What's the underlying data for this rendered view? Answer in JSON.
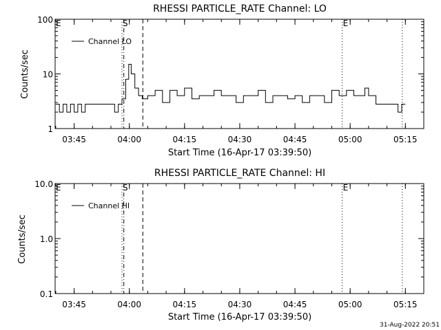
{
  "footer": {
    "date": "31-Aug-2022 20:51"
  },
  "chart_data": [
    {
      "type": "line",
      "title": "RHESSI PARTICLE_RATE Channel: LO",
      "xlabel": "Start Time (16-Apr-17 03:39:50)",
      "ylabel": "Counts/sec",
      "yscale": "log",
      "ylim": [
        1,
        100
      ],
      "xlim": [
        "03:39:50",
        "05:20:00"
      ],
      "x_ticks": [
        "03:45",
        "04:00",
        "04:15",
        "04:30",
        "04:45",
        "05:00",
        "05:15"
      ],
      "y_ticks": [
        "1",
        "10",
        "100"
      ],
      "legend": "Channel LO",
      "legend_position": "top-left",
      "markers": [
        {
          "label": "E",
          "time": "03:39:50",
          "style": "dotted"
        },
        {
          "label": "S",
          "time": "03:58:00",
          "style": "dotted"
        },
        {
          "label": "",
          "time": "03:58:30",
          "style": "dashdot"
        },
        {
          "label": "",
          "time": "04:03:40",
          "style": "dashed"
        },
        {
          "label": "E",
          "time": "04:57:50",
          "style": "dotted"
        },
        {
          "label": "",
          "time": "05:14:10",
          "style": "dotted"
        }
      ],
      "series": [
        {
          "name": "Channel LO",
          "x": [
            "03:40:00",
            "03:41:00",
            "03:42:00",
            "03:43:00",
            "03:44:00",
            "03:45:00",
            "03:46:00",
            "03:47:00",
            "03:48:00",
            "03:50:00",
            "03:52:00",
            "03:54:00",
            "03:55:30",
            "03:56:00",
            "03:57:00",
            "03:58:00",
            "03:59:00",
            "03:59:50",
            "04:00:30",
            "04:01:30",
            "04:02:30",
            "04:03:30",
            "04:05:00",
            "04:07:00",
            "04:09:00",
            "04:11:00",
            "04:13:00",
            "04:15:00",
            "04:17:00",
            "04:19:00",
            "04:21:00",
            "04:23:00",
            "04:25:00",
            "04:27:00",
            "04:29:00",
            "04:31:00",
            "04:33:00",
            "04:35:00",
            "04:37:00",
            "04:39:00",
            "04:41:00",
            "04:43:00",
            "04:45:00",
            "04:47:00",
            "04:49:00",
            "04:51:00",
            "04:53:00",
            "04:55:00",
            "04:57:00",
            "04:59:00",
            "05:01:00",
            "05:03:00",
            "05:04:00",
            "05:05:00",
            "05:07:00",
            "05:09:00",
            "05:11:00",
            "05:12:30",
            "05:13:00",
            "05:14:00",
            "05:15:00"
          ],
          "values": [
            2.8,
            2.0,
            2.8,
            2.0,
            2.8,
            2.0,
            2.8,
            2.0,
            2.8,
            2.8,
            2.8,
            2.8,
            2.8,
            2.0,
            2.8,
            3.5,
            8.0,
            15.0,
            10.0,
            5.5,
            4.0,
            3.5,
            4.0,
            5.0,
            3.0,
            5.0,
            4.0,
            5.5,
            3.5,
            4.0,
            4.0,
            5.0,
            4.0,
            4.0,
            3.0,
            4.0,
            4.0,
            5.0,
            3.0,
            4.0,
            4.0,
            3.5,
            4.0,
            3.0,
            4.0,
            4.0,
            3.0,
            5.0,
            4.0,
            5.0,
            4.0,
            4.0,
            5.5,
            4.0,
            2.8,
            2.8,
            2.8,
            2.8,
            2.0,
            2.8,
            2.8
          ]
        }
      ]
    },
    {
      "type": "line",
      "title": "RHESSI PARTICLE_RATE Channel: HI",
      "xlabel": "Start Time (16-Apr-17 03:39:50)",
      "ylabel": "Counts/sec",
      "yscale": "log",
      "ylim": [
        0.1,
        10.0
      ],
      "xlim": [
        "03:39:50",
        "05:20:00"
      ],
      "x_ticks": [
        "03:45",
        "04:00",
        "04:15",
        "04:30",
        "04:45",
        "05:00",
        "05:15"
      ],
      "y_ticks": [
        "0.1",
        "1.0",
        "10.0"
      ],
      "legend": "Channel HI",
      "legend_position": "top-left",
      "markers": [
        {
          "label": "E",
          "time": "03:39:50",
          "style": "dotted"
        },
        {
          "label": "S",
          "time": "03:58:00",
          "style": "dotted"
        },
        {
          "label": "",
          "time": "03:58:30",
          "style": "dashdot"
        },
        {
          "label": "",
          "time": "04:03:40",
          "style": "dashed"
        },
        {
          "label": "E",
          "time": "04:57:50",
          "style": "dotted"
        },
        {
          "label": "",
          "time": "05:14:10",
          "style": "dotted"
        }
      ],
      "series": [
        {
          "name": "Channel HI",
          "x": [],
          "values": []
        }
      ]
    }
  ]
}
